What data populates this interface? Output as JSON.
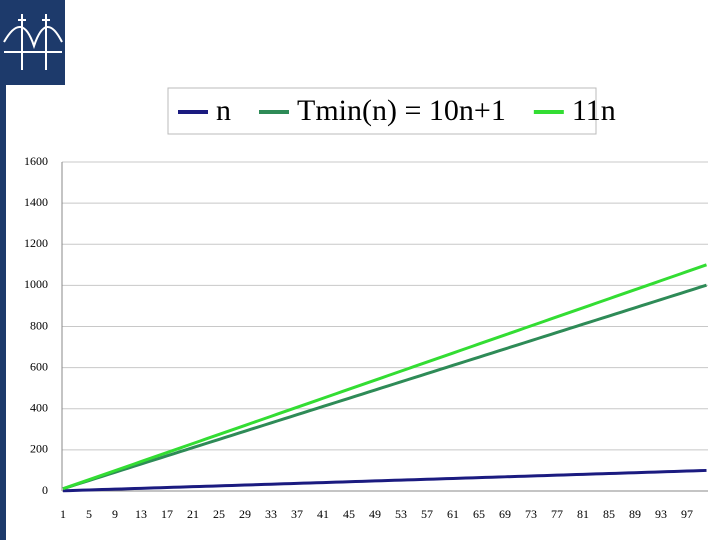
{
  "chart_data": {
    "type": "line",
    "categories": [
      1,
      null,
      null,
      null,
      5,
      null,
      null,
      null,
      9,
      null,
      null,
      null,
      13,
      null,
      null,
      null,
      17,
      null,
      null,
      null,
      21,
      null,
      null,
      null,
      25,
      null,
      null,
      null,
      29,
      null,
      null,
      null,
      33,
      null,
      null,
      null,
      37,
      null,
      null,
      null,
      41,
      null,
      null,
      null,
      45,
      null,
      null,
      null,
      49,
      null,
      null,
      null,
      53,
      null,
      null,
      null,
      57,
      null,
      null,
      null,
      61,
      null,
      null,
      null,
      65,
      null,
      null,
      null,
      69,
      null,
      null,
      null,
      73,
      null,
      null,
      null,
      77,
      null,
      null,
      null,
      81,
      null,
      null,
      null,
      85,
      null,
      null,
      null,
      89,
      null,
      null,
      null,
      93,
      null,
      null,
      null,
      97,
      null,
      null,
      null
    ],
    "series": [
      {
        "name": "n",
        "color": "#1b1b80",
        "values": [
          1,
          2,
          3,
          4,
          5,
          6,
          7,
          8,
          9,
          10,
          11,
          12,
          13,
          14,
          15,
          16,
          17,
          18,
          19,
          20,
          21,
          22,
          23,
          24,
          25,
          26,
          27,
          28,
          29,
          30,
          31,
          32,
          33,
          34,
          35,
          36,
          37,
          38,
          39,
          40,
          41,
          42,
          43,
          44,
          45,
          46,
          47,
          48,
          49,
          50,
          51,
          52,
          53,
          54,
          55,
          56,
          57,
          58,
          59,
          60,
          61,
          62,
          63,
          64,
          65,
          66,
          67,
          68,
          69,
          70,
          71,
          72,
          73,
          74,
          75,
          76,
          77,
          78,
          79,
          80,
          81,
          82,
          83,
          84,
          85,
          86,
          87,
          88,
          89,
          90,
          91,
          92,
          93,
          94,
          95,
          96,
          97,
          98,
          99,
          100
        ]
      },
      {
        "name": "Tmin(n) = 10n+1",
        "color": "#2e8b57",
        "values": [
          11,
          21,
          31,
          41,
          51,
          61,
          71,
          81,
          91,
          101,
          111,
          121,
          131,
          141,
          151,
          161,
          171,
          181,
          191,
          201,
          211,
          221,
          231,
          241,
          251,
          261,
          271,
          281,
          291,
          301,
          311,
          321,
          331,
          341,
          351,
          361,
          371,
          381,
          391,
          401,
          411,
          421,
          431,
          441,
          451,
          461,
          471,
          481,
          491,
          501,
          511,
          521,
          531,
          541,
          551,
          561,
          571,
          581,
          591,
          601,
          611,
          621,
          631,
          641,
          651,
          661,
          671,
          681,
          691,
          701,
          711,
          721,
          731,
          741,
          751,
          761,
          771,
          781,
          791,
          801,
          811,
          821,
          831,
          841,
          851,
          861,
          871,
          881,
          891,
          901,
          911,
          921,
          931,
          941,
          951,
          961,
          971,
          981,
          991,
          1001
        ]
      },
      {
        "name": "11n",
        "color": "#33dd33",
        "values": [
          11,
          22,
          33,
          44,
          55,
          66,
          77,
          88,
          99,
          110,
          121,
          132,
          143,
          154,
          165,
          176,
          187,
          198,
          209,
          220,
          231,
          242,
          253,
          264,
          275,
          286,
          297,
          308,
          319,
          330,
          341,
          352,
          363,
          374,
          385,
          396,
          407,
          418,
          429,
          440,
          451,
          462,
          473,
          484,
          495,
          506,
          517,
          528,
          539,
          550,
          561,
          572,
          583,
          594,
          605,
          616,
          627,
          638,
          649,
          660,
          671,
          682,
          693,
          704,
          715,
          726,
          737,
          748,
          759,
          770,
          781,
          792,
          803,
          814,
          825,
          836,
          847,
          858,
          869,
          880,
          891,
          902,
          913,
          924,
          935,
          946,
          957,
          968,
          979,
          990,
          1001,
          1012,
          1023,
          1034,
          1045,
          1056,
          1067,
          1078,
          1089,
          1100
        ]
      }
    ],
    "ylim": [
      0,
      1600
    ],
    "yticks": [
      0,
      200,
      400,
      600,
      800,
      1000,
      1200,
      1400,
      1600
    ],
    "grid": true,
    "legend": "top"
  }
}
